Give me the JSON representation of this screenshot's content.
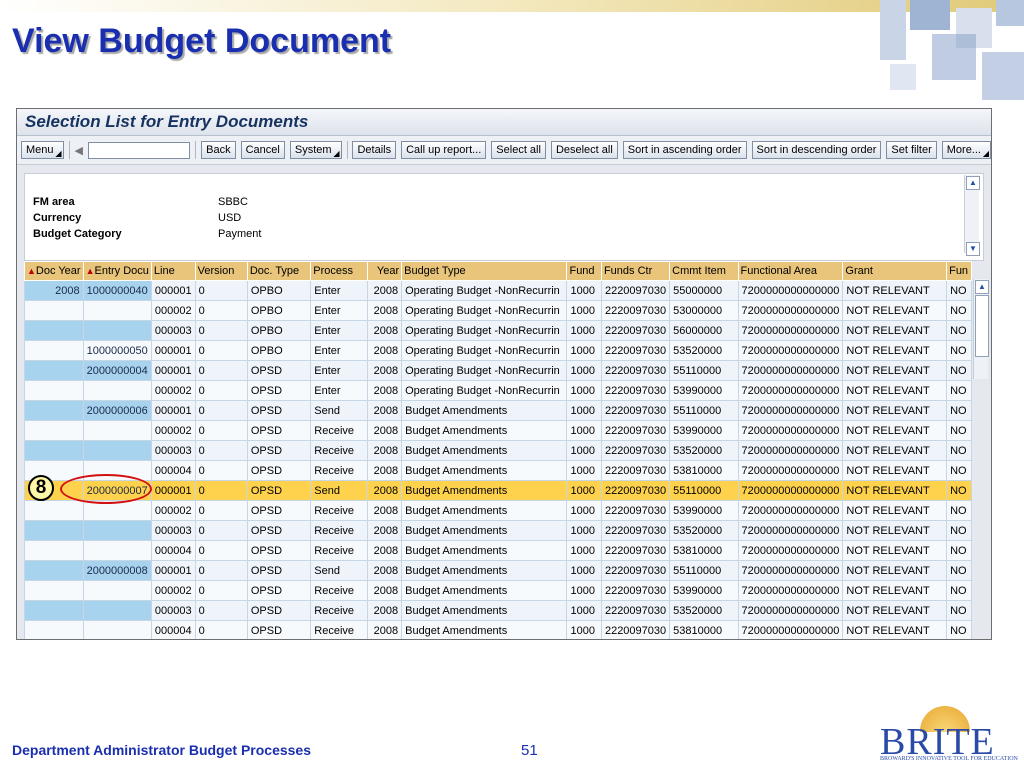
{
  "slide": {
    "title": "View Budget Document",
    "footer_text": "Department Administrator Budget Processes",
    "page_number": "51",
    "logo": {
      "word": "BRITE",
      "tagline": "BROWARD'S INNOVATIVE TOOL FOR EDUCATION"
    }
  },
  "window": {
    "title": "Selection List for Entry Documents"
  },
  "toolbar": {
    "menu": "Menu",
    "back": "Back",
    "cancel": "Cancel",
    "system": "System",
    "details": "Details",
    "call_up_report": "Call up report...",
    "select_all": "Select all",
    "deselect_all": "Deselect all",
    "sort_asc": "Sort in ascending order",
    "sort_desc": "Sort in descending order",
    "set_filter": "Set filter",
    "more": "More..."
  },
  "header_fields": [
    {
      "label": "FM area",
      "value": "SBBC"
    },
    {
      "label": "Currency",
      "value": "USD"
    },
    {
      "label": "Budget Category",
      "value": "Payment"
    }
  ],
  "columns": [
    "Doc Year",
    "Entry Docu",
    "Line",
    "Version",
    "Doc. Type",
    "Process",
    "Year",
    "Budget Type",
    "Fund",
    "Funds Ctr",
    "Cmmt Item",
    "Functional Area",
    "Grant",
    "Fun"
  ],
  "rows": [
    [
      "2008",
      "1000000040",
      "000001",
      "0",
      "OPBO",
      "Enter",
      "2008",
      "Operating Budget -NonRecurrin",
      "1000",
      "2220097030",
      "55000000",
      "7200000000000000",
      "NOT RELEVANT",
      "NO"
    ],
    [
      "",
      "",
      "000002",
      "0",
      "OPBO",
      "Enter",
      "2008",
      "Operating Budget -NonRecurrin",
      "1000",
      "2220097030",
      "53000000",
      "7200000000000000",
      "NOT RELEVANT",
      "NO"
    ],
    [
      "",
      "",
      "000003",
      "0",
      "OPBO",
      "Enter",
      "2008",
      "Operating Budget -NonRecurrin",
      "1000",
      "2220097030",
      "56000000",
      "7200000000000000",
      "NOT RELEVANT",
      "NO"
    ],
    [
      "",
      "1000000050",
      "000001",
      "0",
      "OPBO",
      "Enter",
      "2008",
      "Operating Budget -NonRecurrin",
      "1000",
      "2220097030",
      "53520000",
      "7200000000000000",
      "NOT RELEVANT",
      "NO"
    ],
    [
      "",
      "2000000004",
      "000001",
      "0",
      "OPSD",
      "Enter",
      "2008",
      "Operating Budget -NonRecurrin",
      "1000",
      "2220097030",
      "55110000",
      "7200000000000000",
      "NOT RELEVANT",
      "NO"
    ],
    [
      "",
      "",
      "000002",
      "0",
      "OPSD",
      "Enter",
      "2008",
      "Operating Budget -NonRecurrin",
      "1000",
      "2220097030",
      "53990000",
      "7200000000000000",
      "NOT RELEVANT",
      "NO"
    ],
    [
      "",
      "2000000006",
      "000001",
      "0",
      "OPSD",
      "Send",
      "2008",
      "Budget Amendments",
      "1000",
      "2220097030",
      "55110000",
      "7200000000000000",
      "NOT RELEVANT",
      "NO"
    ],
    [
      "",
      "",
      "000002",
      "0",
      "OPSD",
      "Receive",
      "2008",
      "Budget Amendments",
      "1000",
      "2220097030",
      "53990000",
      "7200000000000000",
      "NOT RELEVANT",
      "NO"
    ],
    [
      "",
      "",
      "000003",
      "0",
      "OPSD",
      "Receive",
      "2008",
      "Budget Amendments",
      "1000",
      "2220097030",
      "53520000",
      "7200000000000000",
      "NOT RELEVANT",
      "NO"
    ],
    [
      "",
      "",
      "000004",
      "0",
      "OPSD",
      "Receive",
      "2008",
      "Budget Amendments",
      "1000",
      "2220097030",
      "53810000",
      "7200000000000000",
      "NOT RELEVANT",
      "NO"
    ],
    [
      "",
      "2000000007",
      "000001",
      "0",
      "OPSD",
      "Send",
      "2008",
      "Budget Amendments",
      "1000",
      "2220097030",
      "55110000",
      "7200000000000000",
      "NOT RELEVANT",
      "NO"
    ],
    [
      "",
      "",
      "000002",
      "0",
      "OPSD",
      "Receive",
      "2008",
      "Budget Amendments",
      "1000",
      "2220097030",
      "53990000",
      "7200000000000000",
      "NOT RELEVANT",
      "NO"
    ],
    [
      "",
      "",
      "000003",
      "0",
      "OPSD",
      "Receive",
      "2008",
      "Budget Amendments",
      "1000",
      "2220097030",
      "53520000",
      "7200000000000000",
      "NOT RELEVANT",
      "NO"
    ],
    [
      "",
      "",
      "000004",
      "0",
      "OPSD",
      "Receive",
      "2008",
      "Budget Amendments",
      "1000",
      "2220097030",
      "53810000",
      "7200000000000000",
      "NOT RELEVANT",
      "NO"
    ],
    [
      "",
      "2000000008",
      "000001",
      "0",
      "OPSD",
      "Send",
      "2008",
      "Budget Amendments",
      "1000",
      "2220097030",
      "55110000",
      "7200000000000000",
      "NOT RELEVANT",
      "NO"
    ],
    [
      "",
      "",
      "000002",
      "0",
      "OPSD",
      "Receive",
      "2008",
      "Budget Amendments",
      "1000",
      "2220097030",
      "53990000",
      "7200000000000000",
      "NOT RELEVANT",
      "NO"
    ],
    [
      "",
      "",
      "000003",
      "0",
      "OPSD",
      "Receive",
      "2008",
      "Budget Amendments",
      "1000",
      "2220097030",
      "53520000",
      "7200000000000000",
      "NOT RELEVANT",
      "NO"
    ],
    [
      "",
      "",
      "000004",
      "0",
      "OPSD",
      "Receive",
      "2008",
      "Budget Amendments",
      "1000",
      "2220097030",
      "53810000",
      "7200000000000000",
      "NOT RELEVANT",
      "NO"
    ]
  ],
  "selected_row_index": 10,
  "callout": {
    "number": "8"
  },
  "colors": {
    "title_blue": "#1a2fb0",
    "header_gold": "#e8c57a",
    "selected_row": "#ffd24d",
    "key_cell_blue": "#a8d3ef",
    "callout_red": "#d21010"
  }
}
